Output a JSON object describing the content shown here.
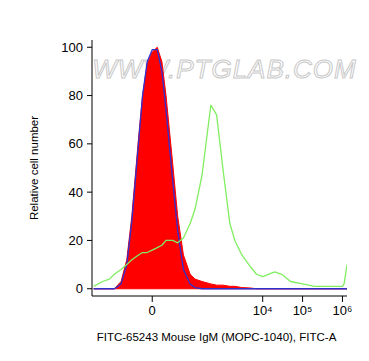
{
  "chart_data": {
    "type": "histogram",
    "annotations": [
      "WWW.PTGLAB.COM"
    ],
    "x_label": "FITC-65243 Mouse IgM (MOPC-1040), FITC-A",
    "y_label": "Relative cell number",
    "x": [
      -500,
      -300,
      -200,
      -150,
      -100,
      -70,
      -50,
      -30,
      -20,
      -10,
      0,
      10,
      20,
      30,
      50,
      70,
      100,
      150,
      200,
      300,
      500,
      700,
      1000,
      1500,
      2000,
      3000,
      5000,
      7000,
      10000,
      20000,
      30000,
      50000,
      100000,
      200000,
      500000,
      1000000,
      1100000,
      1300000
    ],
    "series": [
      {
        "type": "area",
        "color": "#ff0000",
        "values": [
          0,
          0,
          0,
          0,
          3,
          12,
          30,
          62,
          80,
          93,
          98,
          100,
          94,
          80,
          52,
          30,
          14,
          6,
          4,
          3,
          2,
          1.5,
          1.5,
          1,
          1,
          0.5,
          0.3,
          0,
          0,
          0,
          0,
          0,
          0,
          0,
          0,
          0,
          0,
          0
        ]
      },
      {
        "type": "line",
        "color": "#3030d0",
        "values": [
          0,
          0,
          0,
          0,
          2,
          10,
          28,
          60,
          80,
          94,
          99,
          99,
          90,
          74,
          45,
          24,
          8,
          2,
          0.5,
          0,
          0,
          0,
          0,
          0,
          0,
          0,
          0,
          0,
          0,
          0,
          0,
          0,
          0,
          0,
          0,
          0,
          0,
          0
        ]
      },
      {
        "type": "line",
        "color": "#80ee60",
        "values": [
          1,
          3,
          4,
          6,
          8,
          10,
          12,
          14,
          15,
          15,
          16,
          17,
          18,
          20,
          20,
          19,
          21,
          27,
          33,
          47,
          76,
          72,
          50,
          27,
          20,
          14,
          9,
          6,
          5,
          7,
          6,
          3,
          2,
          1,
          1,
          1,
          2,
          10
        ]
      }
    ],
    "xlim": [
      -550,
      1300000
    ],
    "ylim": [
      -3,
      103
    ],
    "xticks": [
      0,
      {
        "value": 10000,
        "label": "10⁴"
      },
      {
        "value": 100000,
        "label": "10⁵"
      },
      {
        "value": 1000000,
        "label": "10⁶"
      }
    ],
    "yticks": [
      0,
      20,
      40,
      60,
      80,
      100
    ],
    "grid": false
  }
}
